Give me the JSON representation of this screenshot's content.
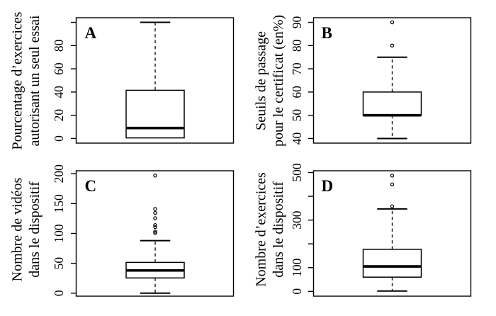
{
  "figure": {
    "description": "Four R-style boxplots (A, B, C, D) in a 2x2 grid describing MOOC course characteristics, French labels",
    "background_color": "#ffffff",
    "ink_color": "#000000"
  },
  "chart_data": [
    {
      "type": "boxplot",
      "panel_letter": "A",
      "ylabel_lines": [
        "Pourcentage d’exercices",
        "autorisant un seul essai"
      ],
      "ylim": [
        -4,
        104
      ],
      "yticks": [
        0,
        20,
        40,
        60,
        80,
        100
      ],
      "ytick_labels": [
        "0",
        "20",
        "40",
        "60",
        "80",
        ""
      ],
      "grid": false,
      "stats": {
        "min": 0.5,
        "q1": 0.5,
        "median": 9,
        "q3": 41.5,
        "max": 100
      },
      "outliers": []
    },
    {
      "type": "boxplot",
      "panel_letter": "B",
      "ylabel_lines": [
        "Seuils de passage",
        "pour le certificat (en%)"
      ],
      "ylim": [
        38,
        92
      ],
      "yticks": [
        40,
        50,
        60,
        70,
        80,
        90
      ],
      "ytick_labels": [
        "40",
        "50",
        "60",
        "70",
        "80",
        "90"
      ],
      "grid": false,
      "stats": {
        "min": 40,
        "q1": 50,
        "median": 50,
        "q3": 60,
        "max": 75
      },
      "outliers": [
        80,
        90
      ]
    },
    {
      "type": "boxplot",
      "panel_letter": "C",
      "ylabel_lines": [
        "Nombre de vidéos",
        "dans le dispositif"
      ],
      "ylim": [
        -5,
        205
      ],
      "yticks": [
        0,
        50,
        100,
        150,
        200
      ],
      "ytick_labels": [
        "0",
        "50",
        "100",
        "150",
        "200"
      ],
      "grid": false,
      "stats": {
        "min": 0,
        "q1": 25.5,
        "median": 38,
        "q3": 51.5,
        "max": 88
      },
      "outliers": [
        101,
        103,
        110.5,
        114,
        125.5,
        134.5,
        141,
        197
      ]
    },
    {
      "type": "boxplot",
      "panel_letter": "D",
      "ylabel_lines": [
        "Nombre d’exercices",
        "dans le dispositif"
      ],
      "ylim": [
        -20,
        507.5
      ],
      "yticks": [
        0,
        100,
        200,
        300,
        400,
        500
      ],
      "ytick_labels": [
        "0",
        "100",
        "",
        "300",
        "",
        "500"
      ],
      "grid": false,
      "stats": {
        "min": 1.5,
        "q1": 60,
        "median": 105,
        "q3": 177,
        "max": 347
      },
      "outliers": [
        358,
        450,
        487
      ]
    }
  ]
}
